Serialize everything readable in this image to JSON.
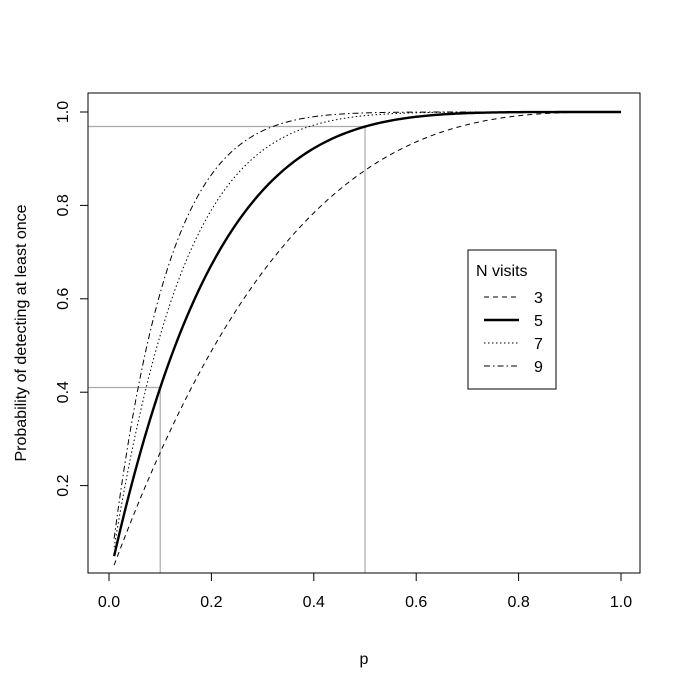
{
  "chart_data": {
    "type": "line",
    "title": "",
    "xlabel": "p",
    "ylabel": "Probability of detecting at least once",
    "xlim": [
      0.0,
      1.0
    ],
    "ylim": [
      0.0,
      1.0
    ],
    "x_ticks": [
      "0.0",
      "0.2",
      "0.4",
      "0.6",
      "0.8",
      "1.0"
    ],
    "y_ticks": [
      "0.2",
      "0.4",
      "0.6",
      "0.8",
      "1.0"
    ],
    "grid": false,
    "legend": {
      "title": "N visits",
      "position": "right"
    },
    "series": [
      {
        "name": "3",
        "line_style": "dashed",
        "values": [
          [
            0.01,
            0.0297
          ],
          [
            0.1,
            0.271
          ],
          [
            0.2,
            0.488
          ],
          [
            0.3,
            0.657
          ],
          [
            0.4,
            0.784
          ],
          [
            0.5,
            0.875
          ],
          [
            0.6,
            0.936
          ],
          [
            0.7,
            0.973
          ],
          [
            0.8,
            0.992
          ],
          [
            0.9,
            0.999
          ],
          [
            1.0,
            1.0
          ]
        ]
      },
      {
        "name": "5",
        "line_style": "solid-bold",
        "values": [
          [
            0.01,
            0.049
          ],
          [
            0.1,
            0.41
          ],
          [
            0.2,
            0.672
          ],
          [
            0.3,
            0.832
          ],
          [
            0.4,
            0.922
          ],
          [
            0.5,
            0.969
          ],
          [
            0.6,
            0.99
          ],
          [
            0.7,
            0.998
          ],
          [
            0.8,
            1.0
          ],
          [
            0.9,
            1.0
          ],
          [
            1.0,
            1.0
          ]
        ]
      },
      {
        "name": "7",
        "line_style": "dotted",
        "values": [
          [
            0.01,
            0.068
          ],
          [
            0.1,
            0.522
          ],
          [
            0.2,
            0.79
          ],
          [
            0.3,
            0.918
          ],
          [
            0.4,
            0.972
          ],
          [
            0.5,
            0.992
          ],
          [
            0.6,
            0.998
          ],
          [
            0.7,
            1.0
          ],
          [
            0.8,
            1.0
          ],
          [
            0.9,
            1.0
          ],
          [
            1.0,
            1.0
          ]
        ]
      },
      {
        "name": "9",
        "line_style": "dash-dot",
        "values": [
          [
            0.01,
            0.086
          ],
          [
            0.1,
            0.613
          ],
          [
            0.2,
            0.866
          ],
          [
            0.3,
            0.96
          ],
          [
            0.4,
            0.99
          ],
          [
            0.5,
            0.998
          ],
          [
            0.6,
            1.0
          ],
          [
            0.7,
            1.0
          ],
          [
            0.8,
            1.0
          ],
          [
            0.9,
            1.0
          ],
          [
            1.0,
            1.0
          ]
        ]
      }
    ],
    "reference_lines": [
      {
        "x": 0.1,
        "y": 0.41,
        "color": "#aaaaaa"
      },
      {
        "x": 0.5,
        "y": 0.969,
        "color": "#aaaaaa"
      }
    ]
  }
}
